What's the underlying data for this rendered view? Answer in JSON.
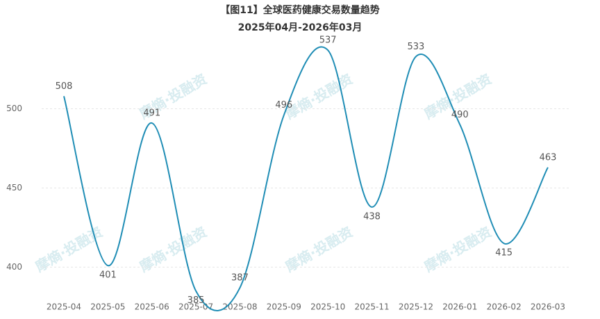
{
  "chart_data": {
    "type": "line",
    "title": "【图11】全球医药健康交易数量趋势",
    "subtitle": "2025年04月-2026年03月",
    "watermark": "摩熵·投融资",
    "categories": [
      "2025-04",
      "2025-05",
      "2025-06",
      "2025-07",
      "2025-08",
      "2025-09",
      "2025-10",
      "2025-11",
      "2025-12",
      "2026-01",
      "2026-02",
      "2026-03"
    ],
    "values": [
      508,
      401,
      491,
      385,
      387,
      496,
      537,
      438,
      533,
      490,
      415,
      463
    ],
    "color": "#1f8db5",
    "ylim": [
      380,
      545
    ],
    "yticks": [
      400,
      450,
      500
    ],
    "grid": true,
    "smooth": true
  }
}
